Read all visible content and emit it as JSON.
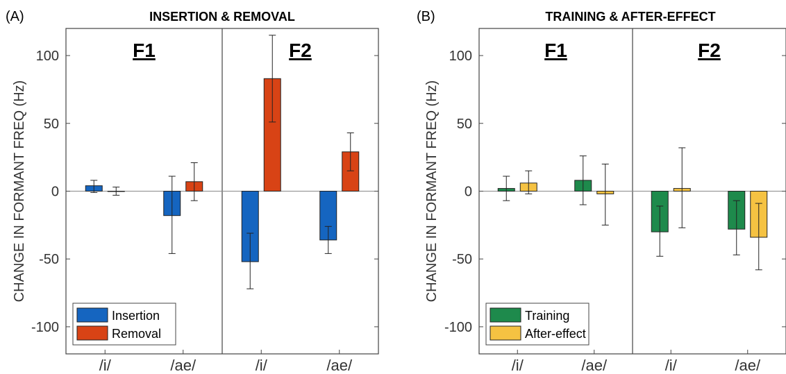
{
  "chart_data": [
    {
      "type": "bar",
      "panel_label": "(A)",
      "title": "INSERTION & REMOVAL",
      "ylabel": "CHANGE IN FORMANT FREQ (Hz)",
      "xlabel": "",
      "ylim": [
        -120,
        120
      ],
      "yticks": [
        100,
        50,
        0,
        -50,
        -100
      ],
      "grid": false,
      "legend_position": "bottom-left",
      "groups": [
        {
          "label": "F1",
          "categories": [
            "/i/",
            "/ae/"
          ]
        },
        {
          "label": "F2",
          "categories": [
            "/i/",
            "/ae/"
          ]
        }
      ],
      "categories": [
        "/i/",
        "/ae/",
        "/i/",
        "/ae/"
      ],
      "series": [
        {
          "name": "Insertion",
          "color": "#1565c0",
          "values": [
            4,
            -18,
            -52,
            -36
          ],
          "errors": [
            [
              -1,
              8
            ],
            [
              -46,
              11
            ],
            [
              -72,
              -31
            ],
            [
              -46,
              -26
            ]
          ]
        },
        {
          "name": "Removal",
          "color": "#d84315",
          "values": [
            0,
            7,
            83,
            29
          ],
          "errors": [
            [
              -3,
              3
            ],
            [
              -7,
              21
            ],
            [
              51,
              115
            ],
            [
              15,
              43
            ]
          ]
        }
      ]
    },
    {
      "type": "bar",
      "panel_label": "(B)",
      "title": "TRAINING & AFTER-EFFECT",
      "ylabel": "CHANGE IN FORMANT FREQ (Hz)",
      "xlabel": "",
      "ylim": [
        -120,
        120
      ],
      "yticks": [
        100,
        50,
        0,
        -50,
        -100
      ],
      "grid": false,
      "legend_position": "bottom-left",
      "groups": [
        {
          "label": "F1",
          "categories": [
            "/i/",
            "/ae/"
          ]
        },
        {
          "label": "F2",
          "categories": [
            "/i/",
            "/ae/"
          ]
        }
      ],
      "categories": [
        "/i/",
        "/ae/",
        "/i/",
        "/ae/"
      ],
      "series": [
        {
          "name": "Training",
          "color": "#1e8a4c",
          "values": [
            2,
            8,
            -30,
            -28
          ],
          "errors": [
            [
              -7,
              11
            ],
            [
              -10,
              26
            ],
            [
              -48,
              -11
            ],
            [
              -47,
              -7
            ]
          ]
        },
        {
          "name": "After-effect",
          "color": "#f5c242",
          "values": [
            6,
            -2,
            2,
            -34
          ],
          "errors": [
            [
              -2,
              15
            ],
            [
              -25,
              20
            ],
            [
              -27,
              32
            ],
            [
              -58,
              -9
            ]
          ]
        }
      ]
    }
  ]
}
